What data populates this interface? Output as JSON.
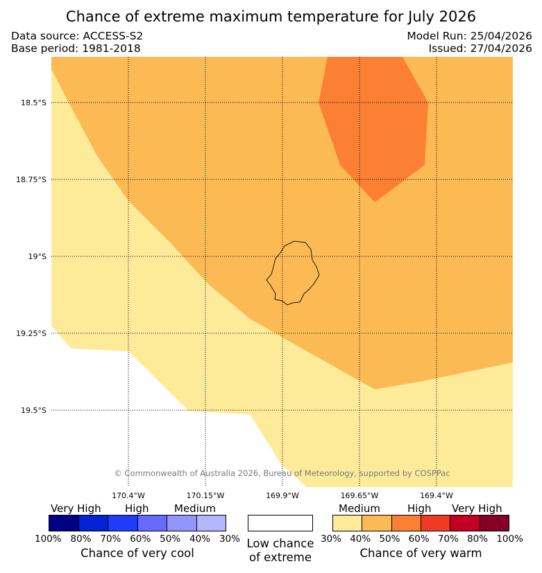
{
  "title": "Chance of extreme maximum temperature for July 2026",
  "data_source": "Data source: ACCESS-S2",
  "base_period": "Base period: 1981-2018",
  "model_run": "Model Run: 25/04/2026",
  "issued": "Issued: 27/04/2026",
  "copyright": "© Commonwealth of Australia 2026, Bureau of Meteorology, supported by COSPPac",
  "lat_labels": [
    "18.5°S",
    "18.75°S",
    "19°S",
    "19.25°S",
    "19.5°S"
  ],
  "lon_labels": [
    "170.4°W",
    "170.15°W",
    "169.9°W",
    "169.65°W",
    "169.4°W"
  ],
  "colors": {
    "map_medium": "#fdeb9a",
    "map_high_light": "#fcba55",
    "map_high_dark": "#fc8033",
    "cool": [
      "#000086",
      "#0223d6",
      "#1f3cfc",
      "#666bfe",
      "#9195fd",
      "#b3b7fd"
    ],
    "warm": [
      "#fdeb9a",
      "#fcba55",
      "#fc8033",
      "#ef3b24",
      "#c30024",
      "#860028"
    ]
  },
  "legend": {
    "cool": {
      "categories": [
        "Very High",
        "High",
        "Medium"
      ],
      "percents": [
        "100%",
        "80%",
        "70%",
        "60%",
        "50%",
        "40%",
        "30%"
      ],
      "caption": "Chance of very cool"
    },
    "neutral": {
      "line1": "Low chance",
      "line2": "of extreme"
    },
    "warm": {
      "categories": [
        "Medium",
        "High",
        "Very High"
      ],
      "percents": [
        "30%",
        "40%",
        "50%",
        "60%",
        "70%",
        "80%",
        "100%"
      ],
      "caption": "Chance of very warm"
    }
  }
}
